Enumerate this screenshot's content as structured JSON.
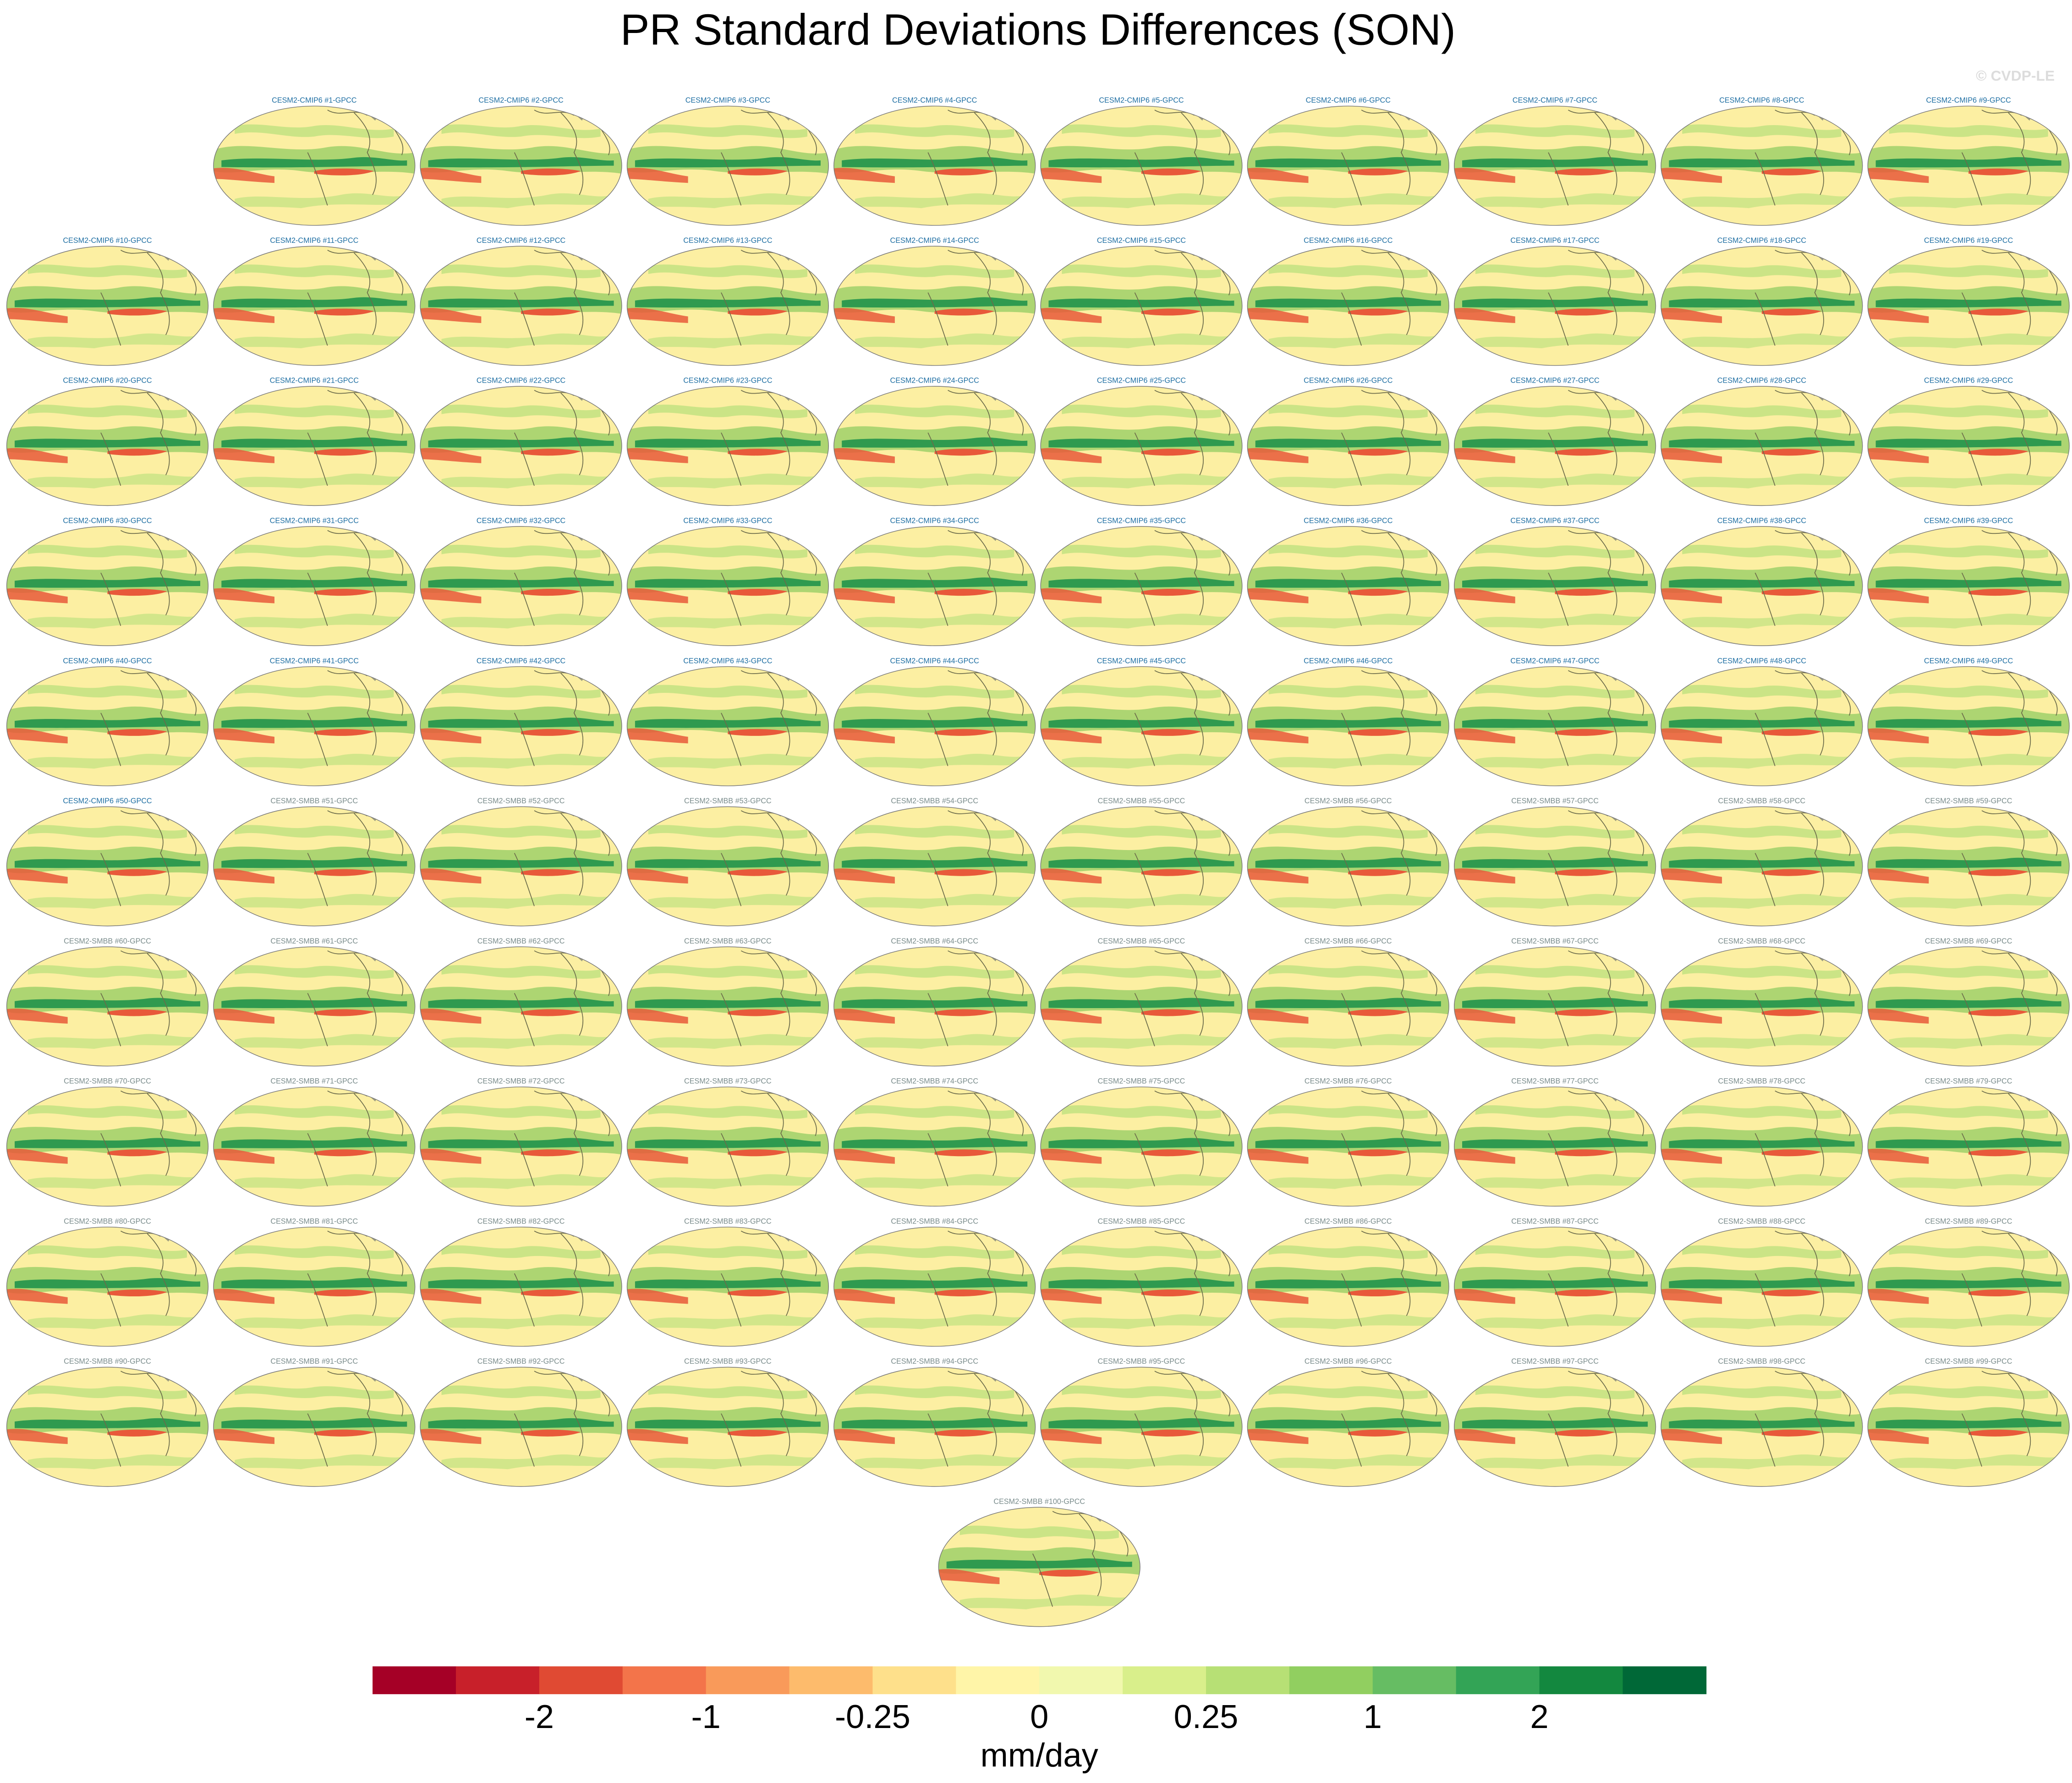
{
  "chart_data": {
    "type": "map-panels",
    "title": "PR Standard Deviations Differences (SON)",
    "watermark": "© CVDP-LE",
    "groups": [
      {
        "color": "#1f6fa3",
        "panels": [
          "CESM2-CMIP6 #1-GPCC",
          "CESM2-CMIP6 #2-GPCC",
          "CESM2-CMIP6 #3-GPCC",
          "CESM2-CMIP6 #4-GPCC",
          "CESM2-CMIP6 #5-GPCC",
          "CESM2-CMIP6 #6-GPCC",
          "CESM2-CMIP6 #7-GPCC",
          "CESM2-CMIP6 #8-GPCC",
          "CESM2-CMIP6 #9-GPCC",
          "CESM2-CMIP6 #10-GPCC",
          "CESM2-CMIP6 #11-GPCC",
          "CESM2-CMIP6 #12-GPCC",
          "CESM2-CMIP6 #13-GPCC",
          "CESM2-CMIP6 #14-GPCC",
          "CESM2-CMIP6 #15-GPCC",
          "CESM2-CMIP6 #16-GPCC",
          "CESM2-CMIP6 #17-GPCC",
          "CESM2-CMIP6 #18-GPCC",
          "CESM2-CMIP6 #19-GPCC",
          "CESM2-CMIP6 #20-GPCC",
          "CESM2-CMIP6 #21-GPCC",
          "CESM2-CMIP6 #22-GPCC",
          "CESM2-CMIP6 #23-GPCC",
          "CESM2-CMIP6 #24-GPCC",
          "CESM2-CMIP6 #25-GPCC",
          "CESM2-CMIP6 #26-GPCC",
          "CESM2-CMIP6 #27-GPCC",
          "CESM2-CMIP6 #28-GPCC",
          "CESM2-CMIP6 #29-GPCC",
          "CESM2-CMIP6 #30-GPCC",
          "CESM2-CMIP6 #31-GPCC",
          "CESM2-CMIP6 #32-GPCC",
          "CESM2-CMIP6 #33-GPCC",
          "CESM2-CMIP6 #34-GPCC",
          "CESM2-CMIP6 #35-GPCC",
          "CESM2-CMIP6 #36-GPCC",
          "CESM2-CMIP6 #37-GPCC",
          "CESM2-CMIP6 #38-GPCC",
          "CESM2-CMIP6 #39-GPCC",
          "CESM2-CMIP6 #40-GPCC",
          "CESM2-CMIP6 #41-GPCC",
          "CESM2-CMIP6 #42-GPCC",
          "CESM2-CMIP6 #43-GPCC",
          "CESM2-CMIP6 #44-GPCC",
          "CESM2-CMIP6 #45-GPCC",
          "CESM2-CMIP6 #46-GPCC",
          "CESM2-CMIP6 #47-GPCC",
          "CESM2-CMIP6 #48-GPCC",
          "CESM2-CMIP6 #49-GPCC",
          "CESM2-CMIP6 #50-GPCC"
        ]
      },
      {
        "color": "#7a8c8c",
        "panels": [
          "CESM2-SMBB #51-GPCC",
          "CESM2-SMBB #52-GPCC",
          "CESM2-SMBB #53-GPCC",
          "CESM2-SMBB #54-GPCC",
          "CESM2-SMBB #55-GPCC",
          "CESM2-SMBB #56-GPCC",
          "CESM2-SMBB #57-GPCC",
          "CESM2-SMBB #58-GPCC",
          "CESM2-SMBB #59-GPCC",
          "CESM2-SMBB #60-GPCC",
          "CESM2-SMBB #61-GPCC",
          "CESM2-SMBB #62-GPCC",
          "CESM2-SMBB #63-GPCC",
          "CESM2-SMBB #64-GPCC",
          "CESM2-SMBB #65-GPCC",
          "CESM2-SMBB #66-GPCC",
          "CESM2-SMBB #67-GPCC",
          "CESM2-SMBB #68-GPCC",
          "CESM2-SMBB #69-GPCC",
          "CESM2-SMBB #70-GPCC",
          "CESM2-SMBB #71-GPCC",
          "CESM2-SMBB #72-GPCC",
          "CESM2-SMBB #73-GPCC",
          "CESM2-SMBB #74-GPCC",
          "CESM2-SMBB #75-GPCC",
          "CESM2-SMBB #76-GPCC",
          "CESM2-SMBB #77-GPCC",
          "CESM2-SMBB #78-GPCC",
          "CESM2-SMBB #79-GPCC",
          "CESM2-SMBB #80-GPCC",
          "CESM2-SMBB #81-GPCC",
          "CESM2-SMBB #82-GPCC",
          "CESM2-SMBB #83-GPCC",
          "CESM2-SMBB #84-GPCC",
          "CESM2-SMBB #85-GPCC",
          "CESM2-SMBB #86-GPCC",
          "CESM2-SMBB #87-GPCC",
          "CESM2-SMBB #88-GPCC",
          "CESM2-SMBB #89-GPCC",
          "CESM2-SMBB #90-GPCC",
          "CESM2-SMBB #91-GPCC",
          "CESM2-SMBB #92-GPCC",
          "CESM2-SMBB #93-GPCC",
          "CESM2-SMBB #94-GPCC",
          "CESM2-SMBB #95-GPCC",
          "CESM2-SMBB #96-GPCC",
          "CESM2-SMBB #97-GPCC",
          "CESM2-SMBB #98-GPCC",
          "CESM2-SMBB #99-GPCC",
          "CESM2-SMBB #100-GPCC"
        ]
      }
    ],
    "colorbar": {
      "colors": [
        "#a50026",
        "#c8202a",
        "#e04a33",
        "#f3744a",
        "#f99a5a",
        "#fdbb6c",
        "#fee08b",
        "#fff5a8",
        "#f1f8ae",
        "#d9ef8b",
        "#b7e075",
        "#91cf60",
        "#66bd63",
        "#33a456",
        "#13883f",
        "#006837"
      ],
      "ticks": [
        -2,
        -1,
        -0.25,
        0,
        0.25,
        1,
        2
      ],
      "label": "mm/day"
    }
  }
}
